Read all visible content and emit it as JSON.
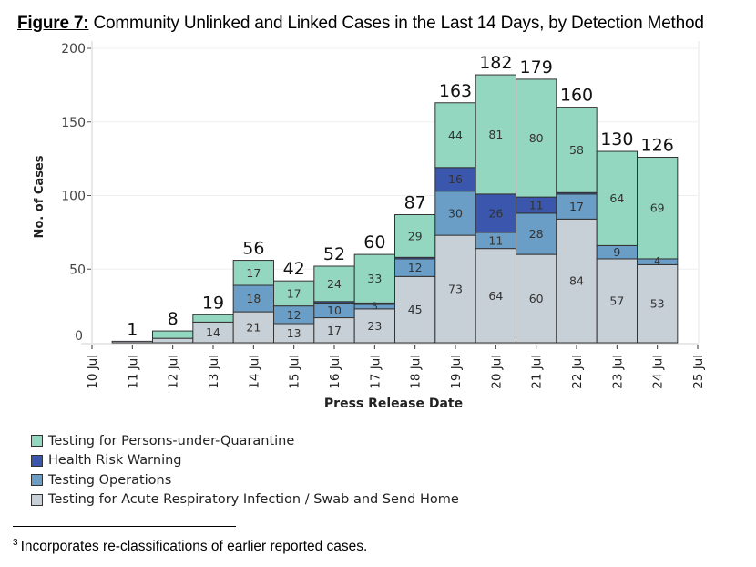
{
  "figure": {
    "label": "Figure 7:",
    "title": " Community Unlinked and Linked Cases in the Last 14 Days, by Detection Method"
  },
  "footnote": {
    "marker": "3",
    "text": "Incorporates re-classifications of earlier reported cases."
  },
  "chart_data": {
    "type": "bar",
    "stacked": true,
    "title": "Community Unlinked and Linked Cases in the Last 14 Days, by Detection Method",
    "xlabel": "Press Release Date",
    "ylabel": "No. of Cases",
    "ylim": [
      0,
      200
    ],
    "yticks": [
      0,
      50,
      100,
      150,
      200
    ],
    "grid": true,
    "legend_position": "bottom-left",
    "x_tick_labels": [
      "10 Jul",
      "11 Jul",
      "12 Jul",
      "13 Jul",
      "14 Jul",
      "15 Jul",
      "16 Jul",
      "17 Jul",
      "18 Jul",
      "19 Jul",
      "20 Jul",
      "21 Jul",
      "22 Jul",
      "23 Jul",
      "24 Jul",
      "25 Jul"
    ],
    "categories": [
      "11 Jul",
      "12 Jul",
      "13 Jul",
      "14 Jul",
      "15 Jul",
      "16 Jul",
      "17 Jul",
      "18 Jul",
      "19 Jul",
      "20 Jul",
      "21 Jul",
      "22 Jul",
      "23 Jul",
      "24 Jul"
    ],
    "totals": [
      1,
      8,
      19,
      56,
      42,
      52,
      60,
      87,
      163,
      182,
      179,
      160,
      130,
      126
    ],
    "series": [
      {
        "name": "Testing for Acute Respiratory Infection / Swab and Send Home",
        "color": "#c8d0d7",
        "values": [
          1,
          3,
          14,
          21,
          13,
          17,
          23,
          45,
          73,
          64,
          60,
          84,
          57,
          53
        ],
        "labels": [
          null,
          null,
          "14",
          "21",
          "13",
          "17",
          "23",
          "45",
          "73",
          "64",
          "60",
          "84",
          "57",
          "53"
        ]
      },
      {
        "name": "Testing Operations",
        "color": "#6a9ec6",
        "values": [
          0,
          0,
          0,
          18,
          12,
          10,
          3,
          12,
          30,
          11,
          28,
          17,
          9,
          4
        ],
        "labels": [
          null,
          null,
          null,
          "18",
          "12",
          "10",
          "3",
          "12",
          "30",
          "11",
          "28",
          "17",
          "9",
          "4"
        ]
      },
      {
        "name": "Health Risk Warning",
        "color": "#3a56ad",
        "values": [
          0,
          0,
          0,
          0,
          0,
          1,
          1,
          1,
          16,
          26,
          11,
          1,
          0,
          0
        ],
        "labels": [
          null,
          null,
          null,
          null,
          null,
          null,
          null,
          null,
          "16",
          "26",
          "11",
          null,
          null,
          null
        ]
      },
      {
        "name": "Testing for Persons-under-Quarantine",
        "color": "#94d7c0",
        "values": [
          0,
          5,
          5,
          17,
          17,
          24,
          33,
          29,
          44,
          81,
          80,
          58,
          64,
          69
        ],
        "labels": [
          null,
          null,
          null,
          "17",
          "17",
          "24",
          "33",
          "29",
          "44",
          "81",
          "80",
          "58",
          "64",
          "69"
        ]
      }
    ],
    "legend": [
      {
        "name": "Testing for Persons-under-Quarantine",
        "color": "#94d7c0"
      },
      {
        "name": "Health Risk Warning",
        "color": "#3a56ad"
      },
      {
        "name": "Testing Operations",
        "color": "#6a9ec6"
      },
      {
        "name": "Testing for Acute Respiratory Infection / Swab and Send Home",
        "color": "#c8d0d7"
      }
    ]
  }
}
